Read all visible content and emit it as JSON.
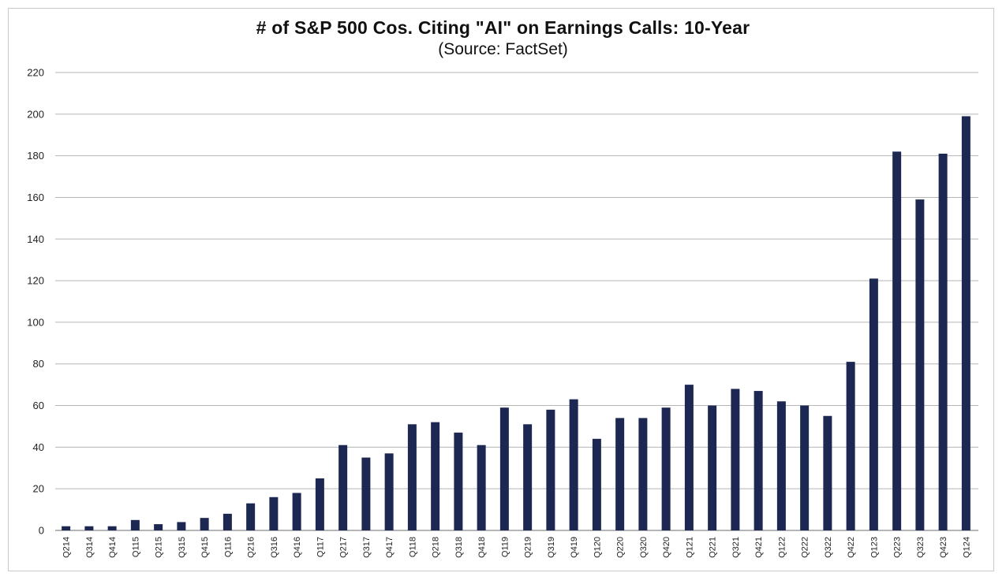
{
  "chart_data": {
    "type": "bar",
    "title": "# of S&P 500 Cos. Citing \"AI\" on Earnings Calls: 10-Year",
    "subtitle": "(Source: FactSet)",
    "xlabel": "",
    "ylabel": "",
    "ylim": [
      0,
      220
    ],
    "yticks": [
      0,
      20,
      40,
      60,
      80,
      100,
      120,
      140,
      160,
      180,
      200,
      220
    ],
    "grid": true,
    "bar_color": "#1c2852",
    "categories": [
      "Q214",
      "Q314",
      "Q414",
      "Q115",
      "Q215",
      "Q315",
      "Q415",
      "Q116",
      "Q216",
      "Q316",
      "Q416",
      "Q117",
      "Q217",
      "Q317",
      "Q417",
      "Q118",
      "Q218",
      "Q318",
      "Q418",
      "Q119",
      "Q219",
      "Q319",
      "Q419",
      "Q120",
      "Q220",
      "Q320",
      "Q420",
      "Q121",
      "Q221",
      "Q321",
      "Q421",
      "Q122",
      "Q222",
      "Q322",
      "Q422",
      "Q123",
      "Q223",
      "Q323",
      "Q423",
      "Q124"
    ],
    "values": [
      2,
      2,
      2,
      5,
      3,
      4,
      6,
      8,
      13,
      16,
      18,
      25,
      41,
      35,
      37,
      51,
      52,
      47,
      41,
      59,
      51,
      58,
      63,
      44,
      54,
      54,
      59,
      70,
      60,
      68,
      67,
      62,
      60,
      55,
      81,
      121,
      182,
      159,
      181,
      199
    ]
  }
}
